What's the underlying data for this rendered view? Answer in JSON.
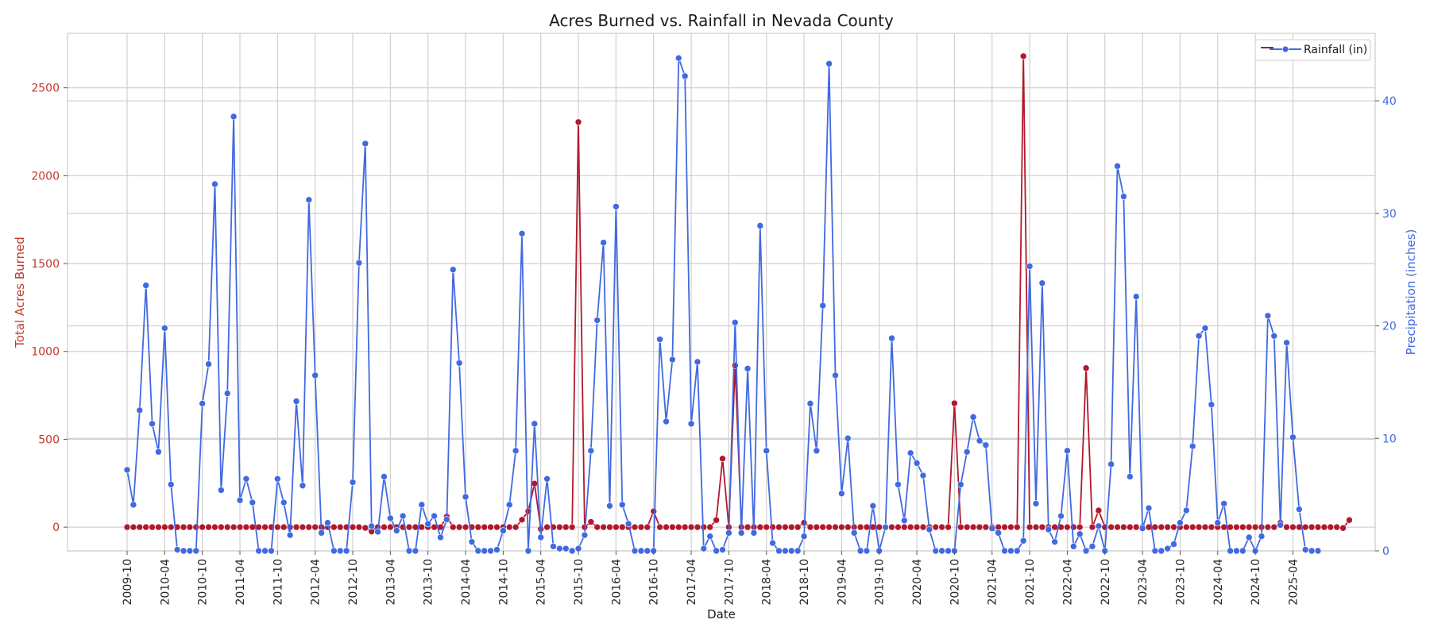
{
  "chart_data": {
    "type": "line",
    "title": "Acres Burned vs. Rainfall in Nevada County",
    "xlabel": "Date",
    "ylabel_left": "Total Acres Burned",
    "ylabel_right": "Precipitation (inches)",
    "x_ticks": [
      "2009-10",
      "2010-04",
      "2010-10",
      "2011-04",
      "2011-10",
      "2012-04",
      "2012-10",
      "2013-04",
      "2013-10",
      "2014-04",
      "2014-10",
      "2015-04",
      "2015-10",
      "2016-04",
      "2016-10",
      "2017-04",
      "2017-10",
      "2018-04",
      "2018-10",
      "2019-04",
      "2019-10",
      "2020-04",
      "2020-10",
      "2021-04",
      "2021-10",
      "2022-04",
      "2022-10",
      "2023-04",
      "2023-10",
      "2024-04",
      "2024-10",
      "2025-04"
    ],
    "y_left_ticks": [
      0,
      500,
      1000,
      1500,
      2000,
      2500
    ],
    "y_right_ticks": [
      0,
      10,
      20,
      30,
      40
    ],
    "ylim_left": [
      -135,
      2810
    ],
    "ylim_right": [
      0,
      46
    ],
    "start_month": "2009-10",
    "grid": true,
    "legend_position": "top-right",
    "colors": {
      "acres": "#b2182b",
      "rain": "#4169e1",
      "grid": "#d0d0d0",
      "text_left": "#c0392b",
      "text_right": "#4169e1"
    },
    "series": [
      {
        "name": "",
        "axis": "left",
        "color": "#b2182b",
        "values": [
          0,
          0,
          0,
          0,
          0,
          0,
          0,
          0,
          0,
          0,
          0,
          0,
          0,
          0,
          0,
          0,
          0,
          0,
          0,
          0,
          0,
          0,
          0,
          0,
          0,
          0,
          0,
          0,
          0,
          0,
          0,
          0,
          0,
          0,
          0,
          0,
          0,
          0,
          0,
          0,
          0,
          0,
          0,
          0,
          0,
          0,
          0,
          0,
          0,
          0,
          0,
          0,
          0,
          0,
          0,
          0,
          0,
          0,
          0,
          0,
          0,
          0,
          0,
          0,
          0,
          0,
          0,
          0,
          0,
          0,
          0,
          0,
          0,
          0,
          0,
          0,
          0,
          0,
          0,
          0,
          0,
          0,
          0,
          0,
          0,
          0,
          0,
          0,
          0,
          0,
          0,
          0,
          0,
          0,
          0,
          0,
          0,
          0,
          0,
          0,
          0,
          0,
          0,
          0,
          0,
          0,
          0,
          0,
          0,
          0,
          0,
          0,
          0,
          0,
          0,
          0,
          0,
          0,
          0,
          0,
          0,
          0,
          0,
          0,
          0,
          0,
          0,
          0,
          0,
          0,
          0,
          0,
          0,
          0,
          0,
          0,
          0,
          0,
          0,
          0,
          0,
          0,
          0,
          0,
          0,
          0,
          0,
          0,
          0,
          0,
          0,
          0,
          0,
          0,
          0,
          0,
          0,
          0,
          0,
          0,
          0,
          0,
          0,
          0,
          0,
          0,
          0,
          0,
          0,
          0,
          0,
          0,
          0,
          0,
          0,
          0,
          0,
          0,
          0,
          0,
          0,
          0,
          0,
          0,
          0,
          0,
          0,
          0,
          0,
          0,
          0,
          0,
          0,
          0,
          0,
          0
        ]
      },
      {
        "name": "Rainfall (in)",
        "axis": "right",
        "color": "#4169e1",
        "values": [
          7.2,
          4.1,
          12.5,
          23.6,
          11.3,
          8.8,
          19.8,
          5.9,
          0.1,
          0,
          0,
          0,
          13.1,
          16.6,
          32.6,
          5.4,
          14,
          38.6,
          4.5,
          6.4,
          4.3,
          0,
          0,
          0,
          6.4,
          4.3,
          1.4,
          13.3,
          5.8,
          31.2,
          15.6,
          1.6,
          2.5,
          0,
          0,
          0,
          6.1,
          25.6,
          36.2,
          2.2,
          1.7,
          6.6,
          2.9,
          1.8,
          3.1,
          0,
          0,
          4.1,
          2.4,
          3.1,
          1.2,
          2.8,
          25,
          16.7,
          4.8,
          0.8,
          0,
          0,
          0,
          0.1,
          1.8,
          4.1,
          8.9,
          28.2,
          0,
          11.3,
          1.2,
          6.4,
          0.4,
          0.2,
          0.2,
          0,
          0.2,
          1.4,
          8.9,
          20.5,
          27.4,
          4,
          30.6,
          4.1,
          2.4,
          0,
          0,
          0,
          0,
          18.8,
          11.5,
          17,
          43.8,
          42.2,
          11.3,
          16.8,
          0.2,
          1.3,
          0,
          0.1,
          1.6,
          20.3,
          1.6,
          16.2,
          1.6,
          28.9,
          8.9,
          0.7,
          0,
          0,
          0,
          0,
          1.3,
          13.1,
          8.9,
          21.8,
          43.3,
          15.6,
          5.1,
          10,
          1.6,
          0,
          0,
          4,
          0,
          2.1,
          18.9,
          5.9,
          2.7,
          8.7,
          7.8,
          6.7,
          1.9,
          0,
          0,
          0,
          0,
          5.9,
          8.8,
          11.9,
          9.8,
          9.4,
          2,
          1.6,
          0,
          0,
          0,
          0.9,
          25.3,
          4.2,
          23.8,
          1.9,
          0.8,
          3.1,
          8.9,
          0.4,
          1.5,
          0,
          0.4,
          2.2,
          0,
          7.7,
          34.2,
          31.5,
          6.6,
          22.6,
          2,
          3.8,
          0,
          0,
          0.2,
          0.6,
          2.5,
          3.6,
          9.3,
          19.1,
          19.8,
          13,
          2.5,
          4.2,
          0,
          0,
          0,
          1.2,
          0,
          1.3,
          20.9,
          19.1,
          2.3,
          18.5,
          10.1,
          3.7,
          0.1,
          0,
          0
        ]
      }
    ],
    "acres_nonzero": [
      {
        "i": 38,
        "v": -4
      },
      {
        "i": 39,
        "v": -25
      },
      {
        "i": 50,
        "v": 0
      },
      {
        "i": 51,
        "v": 60
      },
      {
        "i": 55,
        "v": 0
      },
      {
        "i": 60,
        "v": 0
      },
      {
        "i": 61,
        "v": 0
      },
      {
        "i": 62,
        "v": 0
      },
      {
        "i": 63,
        "v": 42
      },
      {
        "i": 64,
        "v": 90
      },
      {
        "i": 65,
        "v": 248
      },
      {
        "i": 66,
        "v": -10
      },
      {
        "i": 72,
        "v": 2305
      },
      {
        "i": 73,
        "v": 0
      },
      {
        "i": 74,
        "v": 30
      },
      {
        "i": 84,
        "v": 90
      },
      {
        "i": 94,
        "v": 40
      },
      {
        "i": 95,
        "v": 390
      },
      {
        "i": 96,
        "v": 0
      },
      {
        "i": 97,
        "v": 920
      },
      {
        "i": 105,
        "v": 0
      },
      {
        "i": 108,
        "v": 25
      },
      {
        "i": 132,
        "v": 705
      },
      {
        "i": 143,
        "v": 2680
      },
      {
        "i": 153,
        "v": 905
      },
      {
        "i": 154,
        "v": 0
      },
      {
        "i": 155,
        "v": 95
      },
      {
        "i": 184,
        "v": 25
      },
      {
        "i": 193,
        "v": 0
      },
      {
        "i": 194,
        "v": -5
      },
      {
        "i": 195,
        "v": 40
      }
    ]
  }
}
